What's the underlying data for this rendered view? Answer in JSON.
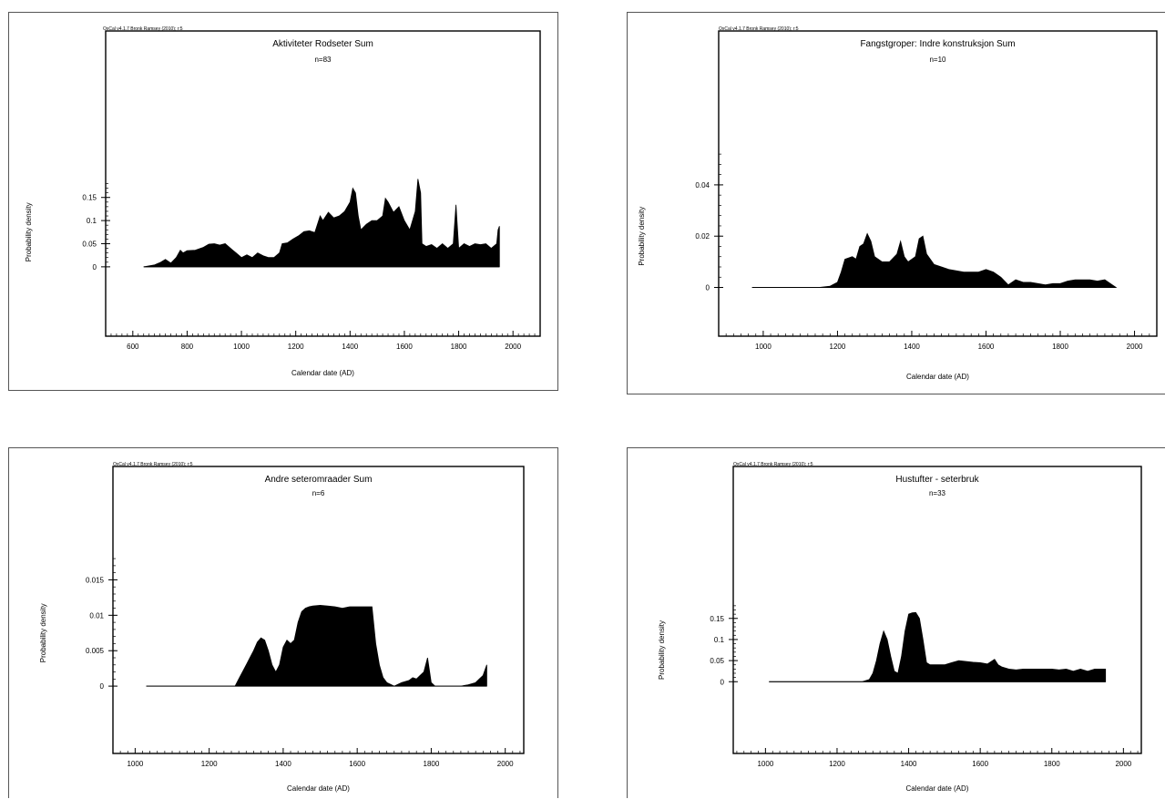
{
  "chart_data": [
    {
      "type": "area",
      "credit": "OxCal v4.1.7 Bronk Ramsey (2010); r:5",
      "title": "Aktiviteter Rodseter Sum",
      "subtitle": "n=83",
      "xlabel": "Calendar date (AD)",
      "ylabel": "Probability density",
      "xlim": [
        500,
        2100
      ],
      "ylim": [
        -0.15,
        0.51
      ],
      "xticks": [
        600,
        800,
        1000,
        1200,
        1400,
        1600,
        1800,
        2000
      ],
      "yticks": [
        0,
        0.05,
        0.1,
        0.15
      ],
      "ytick_labels": [
        "0",
        "0.05",
        "0.1",
        "0.15"
      ],
      "x": [
        640,
        680,
        700,
        720,
        740,
        760,
        775,
        785,
        800,
        830,
        860,
        880,
        900,
        920,
        940,
        960,
        980,
        1000,
        1020,
        1040,
        1060,
        1080,
        1100,
        1120,
        1140,
        1150,
        1170,
        1190,
        1210,
        1230,
        1250,
        1270,
        1290,
        1300,
        1320,
        1340,
        1360,
        1380,
        1400,
        1410,
        1420,
        1430,
        1440,
        1460,
        1480,
        1500,
        1520,
        1530,
        1540,
        1560,
        1580,
        1600,
        1620,
        1640,
        1650,
        1660,
        1665,
        1680,
        1700,
        1720,
        1740,
        1760,
        1780,
        1790,
        1800,
        1820,
        1840,
        1860,
        1880,
        1900,
        1920,
        1940,
        1945,
        1950
      ],
      "y": [
        0,
        0.004,
        0.009,
        0.016,
        0.008,
        0.02,
        0.036,
        0.03,
        0.035,
        0.036,
        0.042,
        0.049,
        0.05,
        0.047,
        0.05,
        0.04,
        0.03,
        0.02,
        0.026,
        0.02,
        0.03,
        0.024,
        0.02,
        0.02,
        0.03,
        0.05,
        0.052,
        0.06,
        0.067,
        0.076,
        0.078,
        0.074,
        0.11,
        0.1,
        0.118,
        0.106,
        0.11,
        0.12,
        0.14,
        0.17,
        0.16,
        0.11,
        0.08,
        0.092,
        0.1,
        0.1,
        0.11,
        0.148,
        0.14,
        0.118,
        0.13,
        0.1,
        0.08,
        0.12,
        0.19,
        0.16,
        0.05,
        0.044,
        0.048,
        0.04,
        0.05,
        0.04,
        0.05,
        0.134,
        0.04,
        0.05,
        0.044,
        0.05,
        0.048,
        0.05,
        0.04,
        0.05,
        0.08,
        0.088
      ],
      "credit_label": "OxCal v4.1.7 Bronk Ramsey (2010); r:5"
    },
    {
      "type": "area",
      "credit": "OxCal v4.1.7 Bronk Ramsey (2010); r:5",
      "title": "Fangstgroper: Indre konstruksjon Sum",
      "subtitle": "n=10",
      "xlabel": "Calendar date (AD)",
      "ylabel": "Probability density",
      "xlim": [
        880,
        2060
      ],
      "ylim": [
        -0.019,
        0.1
      ],
      "xticks": [
        1000,
        1200,
        1400,
        1600,
        1800,
        2000
      ],
      "yticks": [
        0,
        0.02,
        0.04
      ],
      "ytick_labels": [
        "0",
        "0.02",
        "0.04"
      ],
      "x": [
        970,
        1150,
        1180,
        1200,
        1210,
        1220,
        1240,
        1250,
        1260,
        1270,
        1280,
        1290,
        1300,
        1320,
        1340,
        1360,
        1370,
        1380,
        1390,
        1410,
        1420,
        1430,
        1440,
        1460,
        1480,
        1500,
        1540,
        1580,
        1600,
        1620,
        1640,
        1660,
        1680,
        1700,
        1720,
        1740,
        1760,
        1780,
        1800,
        1820,
        1840,
        1860,
        1880,
        1900,
        1920,
        1940,
        1950
      ],
      "y": [
        0,
        0,
        0.0005,
        0.002,
        0.006,
        0.011,
        0.012,
        0.011,
        0.016,
        0.017,
        0.021,
        0.018,
        0.012,
        0.01,
        0.01,
        0.013,
        0.018,
        0.012,
        0.01,
        0.012,
        0.019,
        0.02,
        0.013,
        0.009,
        0.008,
        0.007,
        0.006,
        0.006,
        0.007,
        0.006,
        0.004,
        0.001,
        0.003,
        0.002,
        0.002,
        0.0015,
        0.001,
        0.0015,
        0.0015,
        0.0025,
        0.003,
        0.003,
        0.003,
        0.0025,
        0.003,
        0.001,
        0
      ],
      "credit_label": "OxCal v4.1.7 Bronk Ramsey (2010); r:5"
    },
    {
      "type": "area",
      "credit": "OxCal v4.1.7 Bronk Ramsey (2010); r:5",
      "title": "Andre seteromraader Sum",
      "subtitle": "n=6",
      "xlabel": "Calendar date (AD)",
      "ylabel": "Probability density",
      "xlim": [
        940,
        2050
      ],
      "ylim": [
        -0.0095,
        0.031
      ],
      "xticks": [
        1000,
        1200,
        1400,
        1600,
        1800,
        2000
      ],
      "yticks": [
        0,
        0.005,
        0.01,
        0.015
      ],
      "ytick_labels": [
        "0",
        "0.005",
        "0.01",
        "0.015"
      ],
      "x": [
        1030,
        1270,
        1280,
        1290,
        1300,
        1310,
        1320,
        1330,
        1340,
        1350,
        1360,
        1370,
        1380,
        1390,
        1400,
        1410,
        1420,
        1430,
        1440,
        1450,
        1460,
        1470,
        1480,
        1500,
        1520,
        1540,
        1560,
        1580,
        1600,
        1620,
        1640,
        1650,
        1660,
        1670,
        1680,
        1700,
        1720,
        1740,
        1750,
        1760,
        1770,
        1780,
        1790,
        1800,
        1810,
        1820,
        1850,
        1880,
        1900,
        1920,
        1930,
        1940,
        1950
      ],
      "y": [
        0,
        0,
        0.001,
        0.002,
        0.003,
        0.004,
        0.005,
        0.0062,
        0.0068,
        0.0065,
        0.005,
        0.003,
        0.002,
        0.003,
        0.0055,
        0.0065,
        0.006,
        0.0065,
        0.009,
        0.0105,
        0.011,
        0.0112,
        0.0113,
        0.0114,
        0.0113,
        0.0112,
        0.011,
        0.0112,
        0.0112,
        0.0112,
        0.0112,
        0.006,
        0.003,
        0.0012,
        0.0005,
        0,
        0.0005,
        0.0008,
        0.0012,
        0.001,
        0.0015,
        0.002,
        0.004,
        0.0005,
        0,
        0,
        0,
        0,
        0.0002,
        0.0005,
        0.001,
        0.0015,
        0.003
      ],
      "credit_label": "OxCal v4.1.7 Bronk Ramsey (2010); r:5"
    },
    {
      "type": "area",
      "credit": "OxCal v4.1.7 Bronk Ramsey (2010); r:5",
      "title": "Hustufter - seterbruk",
      "subtitle": "n=33",
      "xlabel": "Calendar date (AD)",
      "ylabel": "Probability density",
      "xlim": [
        910,
        2050
      ],
      "ylim": [
        -0.17,
        0.51
      ],
      "xticks": [
        1000,
        1200,
        1400,
        1600,
        1800,
        2000
      ],
      "yticks": [
        0,
        0.05,
        0.1,
        0.15
      ],
      "ytick_labels": [
        "0",
        "0.05",
        "0.1",
        "0.15"
      ],
      "x": [
        1010,
        1270,
        1290,
        1300,
        1310,
        1320,
        1330,
        1340,
        1350,
        1360,
        1370,
        1380,
        1390,
        1400,
        1410,
        1420,
        1430,
        1440,
        1450,
        1460,
        1480,
        1500,
        1520,
        1540,
        1560,
        1580,
        1600,
        1620,
        1640,
        1650,
        1660,
        1680,
        1700,
        1720,
        1740,
        1760,
        1780,
        1800,
        1820,
        1840,
        1860,
        1880,
        1900,
        1920,
        1940,
        1950
      ],
      "y": [
        0,
        0,
        0.005,
        0.02,
        0.05,
        0.09,
        0.12,
        0.1,
        0.06,
        0.025,
        0.02,
        0.06,
        0.12,
        0.16,
        0.163,
        0.164,
        0.15,
        0.1,
        0.045,
        0.04,
        0.04,
        0.04,
        0.045,
        0.05,
        0.048,
        0.046,
        0.045,
        0.042,
        0.053,
        0.04,
        0.035,
        0.03,
        0.028,
        0.03,
        0.03,
        0.03,
        0.03,
        0.03,
        0.028,
        0.03,
        0.025,
        0.03,
        0.025,
        0.03,
        0.03,
        0.03
      ],
      "credit_label": "OxCal v4.1.7 Bronk Ramsey (2010); r:5"
    }
  ]
}
